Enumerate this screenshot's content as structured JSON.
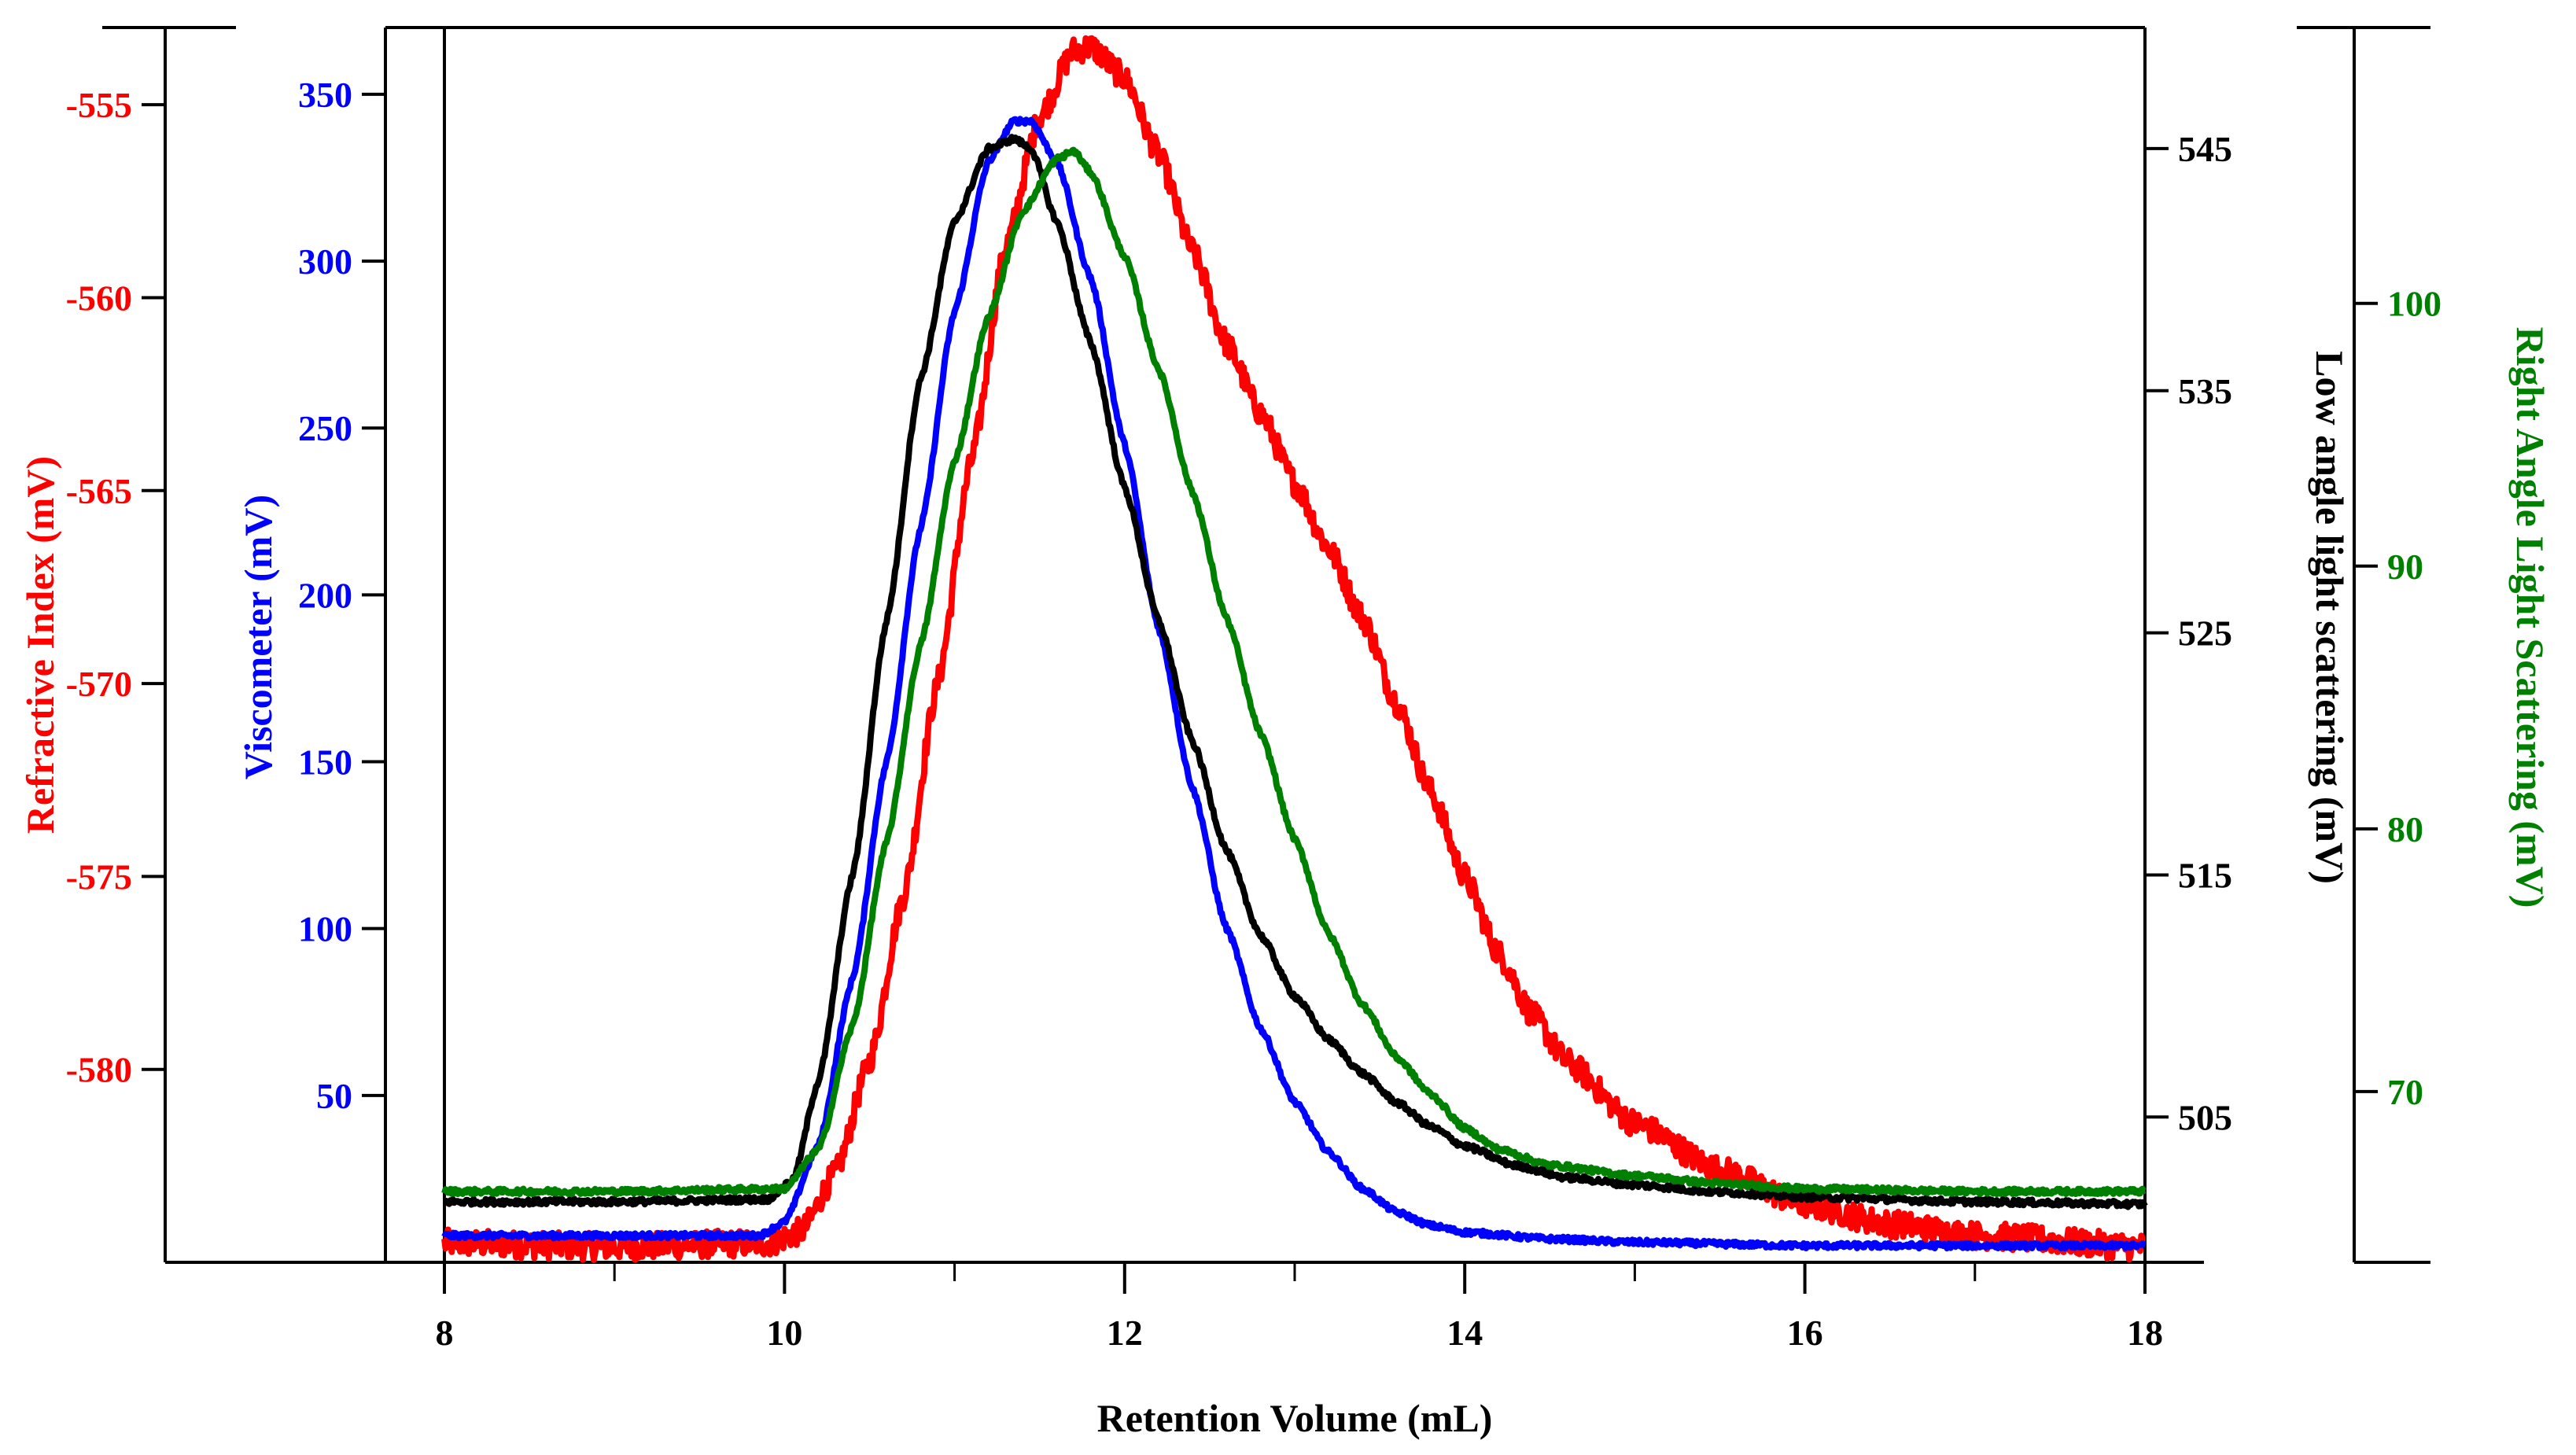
{
  "chart_data": {
    "type": "line",
    "title": "",
    "xlabel": "Retention Volume (mL)",
    "xlim": [
      8,
      18
    ],
    "x_ticks": [
      8,
      10,
      12,
      14,
      16,
      18
    ],
    "x_tick_labels": [
      "8",
      "10",
      "12",
      "14",
      "16",
      "18"
    ],
    "axes": [
      {
        "id": "ri",
        "label": "Refractive Index (mV)",
        "color": "#ff0000",
        "side": "far-left",
        "ylim": [
          -585,
          -553
        ],
        "ticks": [
          -555,
          -560,
          -565,
          -570,
          -575,
          -580
        ],
        "tick_labels": [
          "-555",
          "-560",
          "-565",
          "-570",
          "-575",
          "-580"
        ]
      },
      {
        "id": "visc",
        "label": "Viscometer (mV)",
        "color": "#0000ff",
        "side": "left",
        "ylim": [
          0,
          370
        ],
        "ticks": [
          50,
          100,
          150,
          200,
          250,
          300,
          350
        ],
        "tick_labels": [
          "50",
          "100",
          "150",
          "200",
          "250",
          "300",
          "350"
        ]
      },
      {
        "id": "lals",
        "label": "Low angle light scattering (mV)",
        "color": "#000000",
        "side": "right",
        "ylim": [
          499,
          550
        ],
        "ticks": [
          505,
          515,
          525,
          535,
          545
        ],
        "tick_labels": [
          "505",
          "515",
          "525",
          "535",
          "545"
        ]
      },
      {
        "id": "rals",
        "label": "Right Angle Light Scattering (mV)",
        "color": "#008000",
        "side": "far-right",
        "ylim": [
          63.5,
          110.5
        ],
        "ticks": [
          70,
          80,
          90,
          100
        ],
        "tick_labels": [
          "70",
          "80",
          "90",
          "100"
        ]
      }
    ],
    "series": [
      {
        "name": "Refractive Index",
        "axis": "ri",
        "color": "#ff0000",
        "noise": 0.35,
        "x": [
          8,
          9,
          9.9,
          10.1,
          10.3,
          10.5,
          10.7,
          10.9,
          11.1,
          11.3,
          11.5,
          11.7,
          11.8,
          12.0,
          12.2,
          12.4,
          12.6,
          12.8,
          13.0,
          13.2,
          13.4,
          13.6,
          13.8,
          14.0,
          14.2,
          14.4,
          14.6,
          15.0,
          15.5,
          16.0,
          16.5,
          17.0,
          18.0
        ],
        "y": [
          -584.5,
          -584.6,
          -584.5,
          -584.2,
          -582.7,
          -579.8,
          -575.5,
          -570.0,
          -564.2,
          -558.7,
          -555.3,
          -553.6,
          -553.5,
          -554.3,
          -556.3,
          -558.8,
          -561.2,
          -563.0,
          -564.8,
          -566.5,
          -568.3,
          -570.5,
          -572.8,
          -575.0,
          -577.0,
          -578.6,
          -579.8,
          -581.4,
          -582.6,
          -583.5,
          -584.0,
          -584.3,
          -584.6
        ]
      },
      {
        "name": "Viscometer",
        "axis": "visc",
        "color": "#0000ff",
        "noise": 0.8,
        "x": [
          8,
          9,
          9.85,
          10.0,
          10.2,
          10.4,
          10.6,
          10.8,
          11.0,
          11.2,
          11.35,
          11.45,
          11.6,
          11.8,
          12.0,
          12.2,
          12.4,
          12.6,
          12.8,
          13.0,
          13.2,
          13.4,
          13.6,
          13.8,
          14.0,
          14.5,
          15.0,
          16.0,
          17.0,
          18.0
        ],
        "y": [
          8,
          8,
          8,
          12,
          35,
          85,
          150,
          220,
          285,
          330,
          342,
          342,
          330,
          295,
          245,
          190,
          142,
          100,
          70,
          48,
          33,
          22,
          15,
          11,
          9,
          7,
          6,
          5,
          5,
          5
        ]
      },
      {
        "name": "Low angle light scattering",
        "axis": "lals",
        "color": "#000000",
        "noise": 0.12,
        "x": [
          8,
          9,
          9.9,
          10.05,
          10.2,
          10.4,
          10.6,
          10.8,
          11.0,
          11.2,
          11.35,
          11.45,
          11.6,
          11.8,
          12.0,
          12.2,
          12.4,
          12.6,
          12.8,
          13.0,
          13.2,
          13.4,
          13.6,
          13.8,
          14.0,
          14.3,
          14.6,
          15.0,
          15.5,
          16.0,
          17.0,
          18.0
        ],
        "y": [
          501.5,
          501.5,
          501.6,
          502.4,
          506.5,
          515.0,
          525.5,
          535.5,
          542.0,
          545.0,
          545.4,
          545.0,
          542.0,
          537.0,
          531.0,
          525.5,
          520.5,
          516.0,
          512.5,
          510.0,
          508.2,
          506.8,
          505.6,
          504.6,
          503.8,
          503.0,
          502.5,
          502.2,
          501.9,
          501.7,
          501.5,
          501.4
        ]
      },
      {
        "name": "Right Angle Light Scattering",
        "axis": "rals",
        "color": "#008000",
        "noise": 0.1,
        "x": [
          8,
          9,
          10.0,
          10.2,
          10.4,
          10.6,
          10.8,
          11.0,
          11.2,
          11.4,
          11.6,
          11.7,
          11.8,
          12.0,
          12.2,
          12.4,
          12.6,
          12.8,
          13.0,
          13.2,
          13.4,
          13.6,
          13.8,
          14.0,
          14.2,
          14.5,
          15.0,
          15.5,
          16.0,
          17.0,
          18.0
        ],
        "y": [
          66.2,
          66.2,
          66.3,
          67.8,
          72.5,
          79.5,
          87.0,
          94.0,
          99.5,
          103.5,
          105.5,
          105.8,
          105.0,
          101.8,
          97.5,
          92.8,
          88.0,
          83.6,
          79.6,
          76.0,
          73.3,
          71.3,
          69.9,
          68.6,
          67.8,
          67.2,
          66.8,
          66.5,
          66.3,
          66.2,
          66.2
        ]
      }
    ]
  }
}
